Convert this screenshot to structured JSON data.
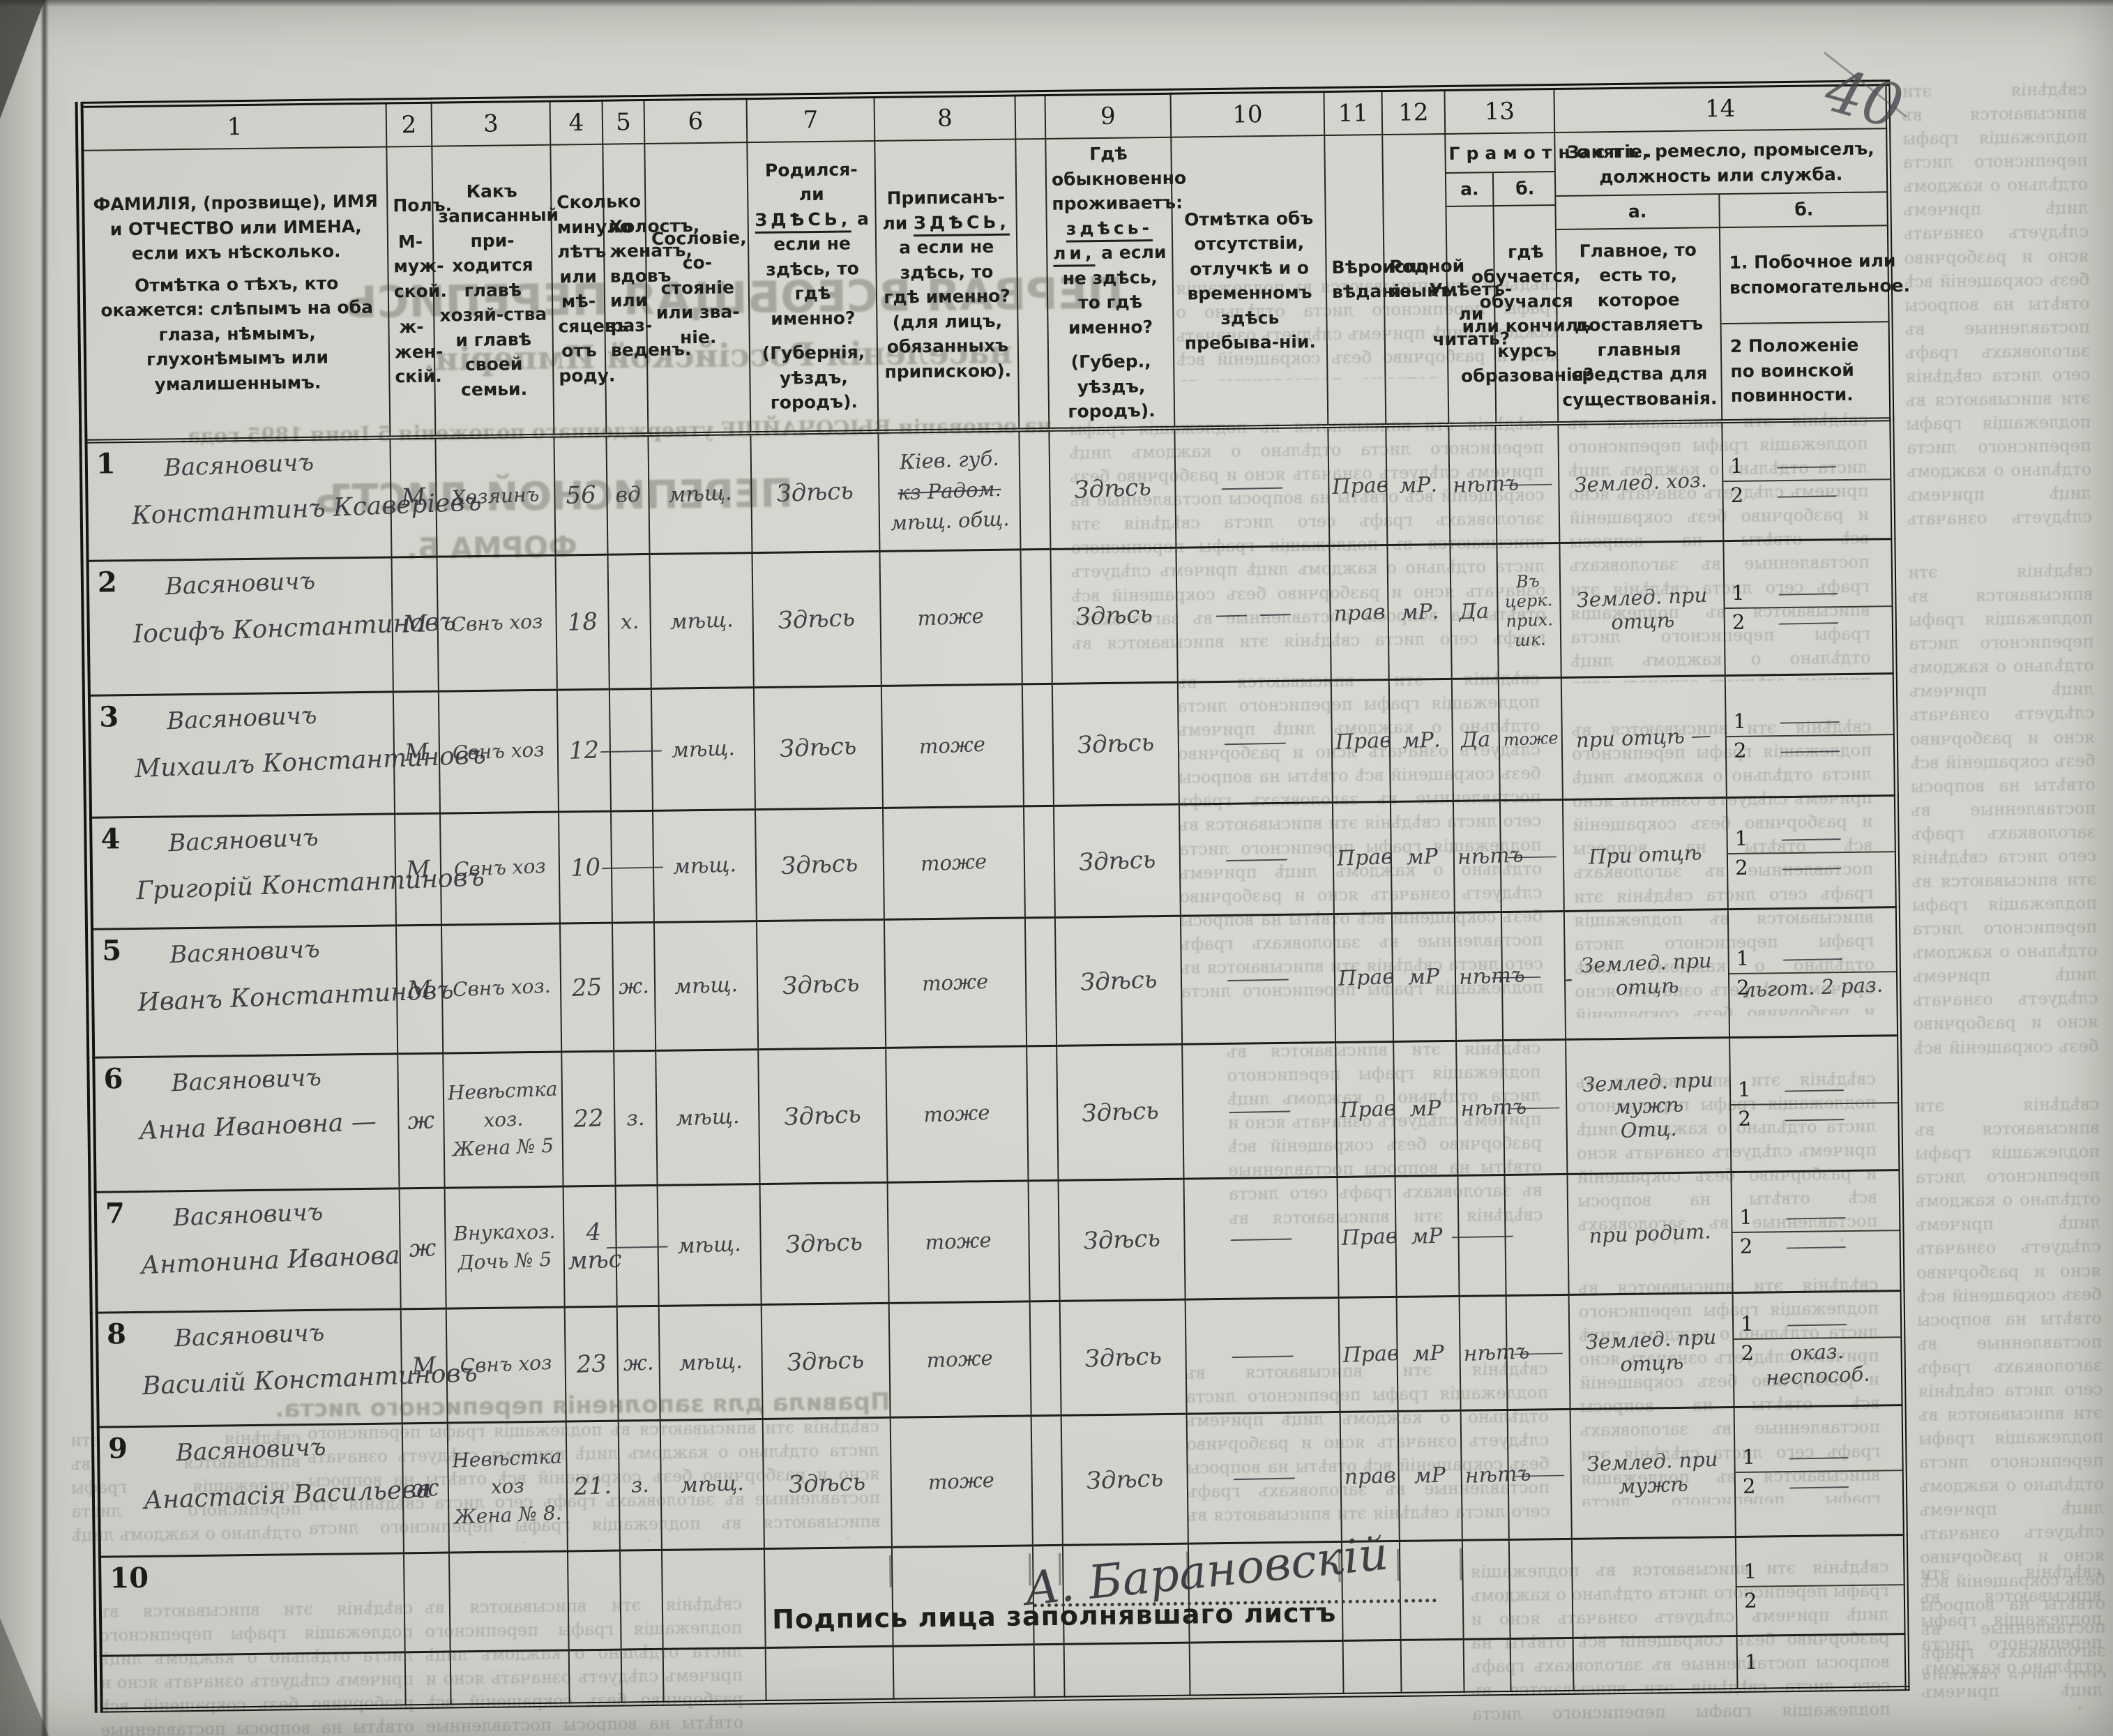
{
  "page": {
    "number_mark": "40"
  },
  "header": {
    "nums": [
      "1",
      "2",
      "3",
      "4",
      "5",
      "6",
      "7",
      "8",
      "9",
      "10",
      "11",
      "12",
      "13",
      "14"
    ],
    "c1a": "ФАМИЛІЯ, (прозвище), ИМЯ и ОТЧЕСТВО или ИМЕНА, если ихъ нѣсколько.",
    "c1b": "Отмѣтка о тѣхъ, кто окажется: слѣпымъ на оба глаза, нѣмымъ, глухонѣмымъ или умалишеннымъ.",
    "c2a": "Полъ.",
    "c2b": "М-муж-ской.",
    "c2c": "ж-жен-скій.",
    "c3": "Какъ записанный при-ходится главѣ хозяй-ства и главѣ своей семьи.",
    "c4": "Сколько минуло лѣтъ или мѣ-сяцевъ отъ роду.",
    "c5": "Холостъ, женатъ, вдовъ или раз-веденъ.",
    "c6": "Сословіе, со-стояніе или зва-ніе.",
    "c7pre": "Родился-ли",
    "c7u": "ЗДѢСЬ,",
    "c7post": "а если не здѣсь, то гдѣ именно?",
    "c7note": "(Губернія, уѣздъ, городъ).",
    "c8pre": "Приписанъ-ли",
    "c8u": "ЗДѢСЬ,",
    "c8post": "а если не здѣсь, то гдѣ именно? (для лицъ, обязанныхъ припискою).",
    "c8note": "",
    "c9pre": "Гдѣ обыкновенно проживаетъ:",
    "c9u": "здѣсь-ли,",
    "c9post": "а если не здѣсь, то гдѣ именно?",
    "c9note": "(Губер., уѣздъ, городъ).",
    "c10": "Отмѣтка объ отсутствіи, отлучкѣ и о временномъ здѣсь пребыва-ніи.",
    "c11": "Вѣроиспо-вѣданіе.",
    "c12": "Родной языкъ.",
    "c13": "Грамотность.",
    "c13a_lbl": "а.",
    "c13b_lbl": "б.",
    "c13a": "Умѣетъ-ли читать?",
    "c13b": "гдѣ обучается, обучался или кончилъ курсъ образованія?",
    "c14": "Занятіе, ремесло, промыселъ, должность или служба.",
    "c14a_lbl": "а.",
    "c14b_lbl": "б.",
    "c14a": "Главное, то есть то, которое доставляетъ главныя средства для существованія.",
    "c14b1": "1.  Побочное или вспомогательное.",
    "c14b2": "2  Положеніе по воинской повинности."
  },
  "form": {
    "side_nums": [
      "1",
      "2"
    ]
  },
  "rows": [
    {
      "no": "1",
      "surname": "Васяновичъ",
      "name": "Константинъ Ксаверіевъ",
      "sex": "М",
      "relation": [
        "Хозяинъ"
      ],
      "age": "56",
      "marital": "вд",
      "estate": "мѣщ.",
      "born": "Здѣсь",
      "registered": [
        "Кіев. губ.",
        "кз Радом.",
        "мѣщ. общ."
      ],
      "registered_strike": 1,
      "resides": "Здѣсь",
      "absence": "—",
      "religion": "Прав",
      "language": "мР.",
      "reads": "нѣтъ",
      "school": "—",
      "occupation": [
        "Землед. хоз."
      ],
      "side": "—",
      "military": "—"
    },
    {
      "no": "2",
      "surname": "Васяновичъ",
      "name": "Іосифъ Константиновъ",
      "sex": "М",
      "relation": [
        "Свнъ хоз"
      ],
      "age": "18",
      "marital": "х.",
      "estate": "мѣщ.",
      "born": "Здѣсь",
      "registered": [
        "тоже"
      ],
      "resides": "Здѣсь",
      "absence": "— —",
      "religion": "прав",
      "language": "мР.",
      "reads": "Да",
      "school": "Въ церк. прих. шк.",
      "occupation": [
        "Землед. при отцѣ"
      ],
      "side": "—",
      "military": "—"
    },
    {
      "no": "3",
      "surname": "Васяновичъ",
      "name": "Михаилъ Константиновъ",
      "sex": "М",
      "relation": [
        "Свнъ хоз"
      ],
      "age": "12",
      "marital": "—",
      "estate": "мѣщ.",
      "born": "Здѣсь",
      "registered": [
        "тоже"
      ],
      "resides": "Здѣсь",
      "absence": "—",
      "religion": "Прав",
      "language": "мР.",
      "reads": "Да",
      "school": "тоже",
      "occupation": [
        "при отцѣ —"
      ],
      "side": "—",
      "military": "—"
    },
    {
      "no": "4",
      "surname": "Васяновичъ",
      "name": "Григорій Константиновъ",
      "sex": "М",
      "relation": [
        "Свнъ хоз"
      ],
      "age": "10",
      "marital": "—",
      "estate": "мѣщ.",
      "born": "Здѣсь",
      "registered": [
        "тоже"
      ],
      "resides": "Здѣсь",
      "absence": "—",
      "religion": "Прав",
      "language": "мР",
      "reads": "нѣтъ",
      "school": "—",
      "occupation": [
        "При отцѣ"
      ],
      "side": "—",
      "military": "—"
    },
    {
      "no": "5",
      "surname": "Васяновичъ",
      "name": "Иванъ Константиновъ",
      "sex": "М",
      "relation": [
        "Свнъ хоз."
      ],
      "age": "25",
      "marital": "ж.",
      "estate": "мѣщ.",
      "born": "Здѣсь",
      "registered": [
        "тоже"
      ],
      "resides": "Здѣсь",
      "absence": "—",
      "religion": "Прав",
      "language": "мР",
      "reads": "нѣтъ",
      "school": "— .",
      "occupation": [
        "Землед. при отцѣ"
      ],
      "side": "—",
      "military": "льгот. 2 раз."
    },
    {
      "no": "6",
      "surname": "Васяновичъ",
      "name": "Анна Ивановна —",
      "sex": "ж",
      "relation": [
        "Невѣстка",
        "хоз.",
        "Жена № 5"
      ],
      "age": "22",
      "marital": "з.",
      "estate": "мѣщ.",
      "born": "Здѣсь",
      "registered": [
        "тоже"
      ],
      "resides": "Здѣсь",
      "absence": "—",
      "religion": "Прав",
      "language": "мР",
      "reads": "нѣтъ",
      "school": "—",
      "occupation": [
        "Землед. при мужѣ",
        "Отц."
      ],
      "side": "—",
      "military": "—"
    },
    {
      "no": "7",
      "surname": "Васяновичъ",
      "name": "Антонина Иванова",
      "sex": "ж",
      "relation": [
        "Внука",
        "хоз.",
        "Дочь № 5"
      ],
      "age": "4 мѣс",
      "marital": "—",
      "estate": "мѣщ.",
      "born": "Здѣсь",
      "registered": [
        "тоже"
      ],
      "resides": "Здѣсь",
      "absence": "—",
      "religion": "Прав",
      "language": "мР",
      "reads": "—",
      "school": "",
      "occupation": [
        "при родит."
      ],
      "side": "—",
      "military": "—"
    },
    {
      "no": "8",
      "surname": "Васяновичъ",
      "name": "Василій Константиновъ",
      "sex": "М",
      "relation": [
        "Свнъ хоз"
      ],
      "age": "23",
      "marital": "ж.",
      "estate": "мѣщ.",
      "born": "Здѣсь",
      "registered": [
        "тоже"
      ],
      "resides": "Здѣсь",
      "absence": "—",
      "religion": "Прав",
      "language": "мР",
      "reads": "нѣтъ",
      "school": "—",
      "occupation": [
        "Землед. при отцѣ"
      ],
      "side": "—",
      "military": "оказ. неспособ."
    },
    {
      "no": "9",
      "surname": "Васяновичъ",
      "name": "Анастасія Васильева",
      "sex": "ж",
      "relation": [
        "Невѣстка",
        "хоз",
        "Жена № 8."
      ],
      "age": "21.",
      "marital": "з.",
      "estate": "мѣщ.",
      "born": "Здѣсь",
      "registered": [
        "тоже"
      ],
      "resides": "Здѣсь",
      "absence": "—",
      "religion": "прав",
      "language": "мР",
      "reads": "нѣтъ",
      "school": "—",
      "occupation": [
        "Землед. при мужѣ"
      ],
      "side": "—",
      "military": "—"
    },
    {
      "no": "10",
      "surname": "",
      "name": "",
      "sex": "",
      "relation": [],
      "age": "",
      "marital": "",
      "estate": "",
      "born": "",
      "registered": [],
      "resides": "",
      "absence": "",
      "religion": "",
      "language": "",
      "reads": "",
      "school": "",
      "occupation": [],
      "side": "",
      "military": ""
    }
  ],
  "footer": {
    "signature_label": "Подпись лица заполнявшаго листъ",
    "signature": "А. Барановскій"
  },
  "bleed": {
    "title1": "ПЕРВАЯ ВСЕОБЩАЯ ПЕРЕПИСЬ",
    "title2": "населенія Россійской Имперіи,",
    "title3": "на основаніи ВЫСОЧАЙШЕ утвержденнаго положенія 5 Іюня 1895 года.",
    "title4": "ПЕРЕПИСНОЙ ЛИСТЪ",
    "title5": "ФОРМА Б.",
    "title6": "Правила для заполненія переписного листа.",
    "filler": "свѣдѣнія эти вписываются въ подлежащія графы переписного листа отдѣльно о каждомъ лицѣ причемъ слѣдуетъ означать ясно и разборчиво безъ сокращеній всѣ отвѣты на вопросы поставленные въ заголовкахъ графъ сего листа "
  }
}
